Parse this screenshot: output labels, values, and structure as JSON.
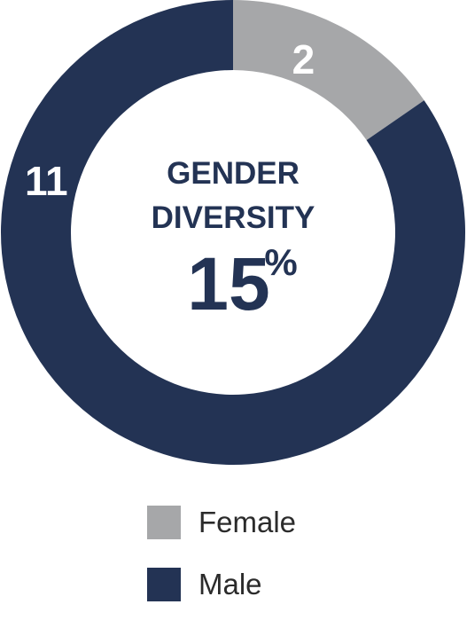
{
  "chart_data": {
    "type": "pie",
    "donut": true,
    "categories": [
      "Female",
      "Male"
    ],
    "values": [
      2,
      11
    ],
    "colors": [
      "#a6a7a9",
      "#233354"
    ],
    "center_text": {
      "line1": "GENDER",
      "line2": "DIVERSITY",
      "value": "15",
      "unit": "%"
    },
    "legend_placement": "bottom"
  },
  "legend": {
    "items": [
      {
        "label": "Female",
        "color": "#a6a7a9"
      },
      {
        "label": "Male",
        "color": "#233354"
      }
    ]
  }
}
